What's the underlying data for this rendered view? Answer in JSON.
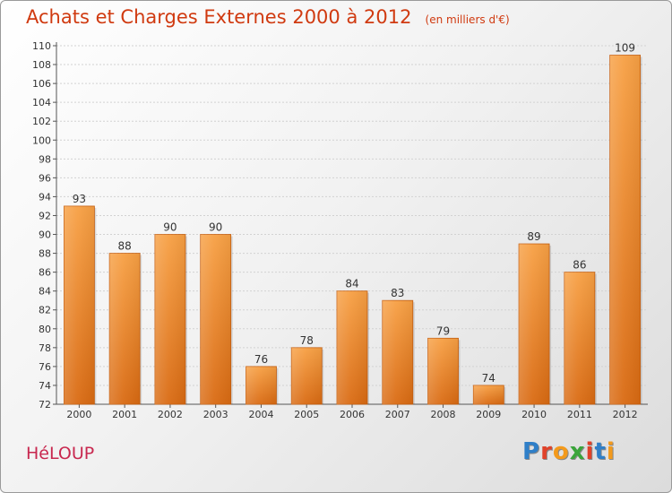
{
  "header": {
    "title": "Achats et Charges Externes 2000 à 2012",
    "subtitle": "(en milliers d'€)"
  },
  "footer": {
    "commune": "HéLOUP",
    "logo_letters": [
      {
        "char": "P",
        "color": "#2f7fc8"
      },
      {
        "char": "r",
        "color": "#e0422a"
      },
      {
        "char": "o",
        "color": "#f39a1c"
      },
      {
        "char": "x",
        "color": "#3aa53a"
      },
      {
        "char": "i",
        "color": "#e0422a"
      },
      {
        "char": "t",
        "color": "#2f7fc8"
      },
      {
        "char": "i",
        "color": "#f39a1c"
      }
    ]
  },
  "chart_data": {
    "type": "bar",
    "title": "Achats et Charges Externes 2000 à 2012",
    "subtitle": "(en milliers d'€)",
    "categories": [
      "2000",
      "2001",
      "2002",
      "2003",
      "2004",
      "2005",
      "2006",
      "2007",
      "2008",
      "2009",
      "2010",
      "2011",
      "2012"
    ],
    "values": [
      93,
      88,
      90,
      90,
      76,
      78,
      84,
      83,
      79,
      74,
      89,
      86,
      109
    ],
    "ylim": [
      72,
      110
    ],
    "yticks": [
      72,
      74,
      76,
      78,
      80,
      82,
      84,
      86,
      88,
      90,
      92,
      94,
      96,
      98,
      100,
      102,
      104,
      106,
      108,
      110
    ],
    "grid": true,
    "bar_color": "#f07f22",
    "xlabel": "",
    "ylabel": ""
  }
}
